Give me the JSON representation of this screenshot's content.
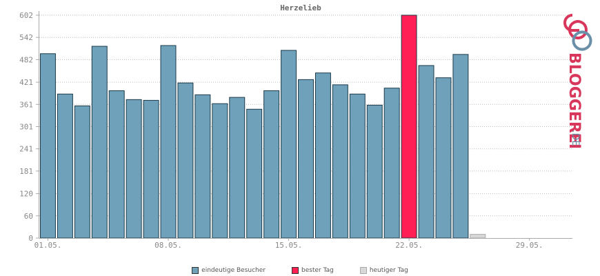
{
  "chart_data": {
    "type": "bar",
    "title": "Herzelieb",
    "y_ticks": [
      "0",
      "60",
      "120",
      "181",
      "241",
      "301",
      "361",
      "421",
      "482",
      "542",
      "602"
    ],
    "ylim": [
      0,
      602
    ],
    "x_tick_labels": [
      {
        "index": 0,
        "label": "01.05."
      },
      {
        "index": 7,
        "label": "08.05."
      },
      {
        "index": 14,
        "label": "15.05."
      },
      {
        "index": 21,
        "label": "22.05."
      },
      {
        "index": 28,
        "label": "29.05."
      }
    ],
    "days": 31,
    "values": [
      498,
      389,
      357,
      518,
      398,
      374,
      372,
      520,
      419,
      387,
      363,
      380,
      348,
      398,
      507,
      428,
      446,
      414,
      389,
      359,
      405,
      602,
      466,
      433,
      496,
      10
    ],
    "best_index": 21,
    "today_index": 25,
    "grid": true,
    "legend_position": "bottom",
    "colors": {
      "visitors": "#6fa1bb",
      "best": "#ff1f55",
      "today": "#d8d8d8",
      "bar_stroke": "#1b3a48",
      "grid": "#bbbbbb",
      "axis": "#aaaaaa"
    }
  },
  "legend": [
    {
      "label": "eindeutige Besucher",
      "color": "#6fa1bb"
    },
    {
      "label": "bester Tag",
      "color": "#ff1f55"
    },
    {
      "label": "heutiger Tag",
      "color": "#d8d8d8"
    }
  ],
  "logo": {
    "text": "BLOGGEREI",
    "suffix": ".DE"
  }
}
